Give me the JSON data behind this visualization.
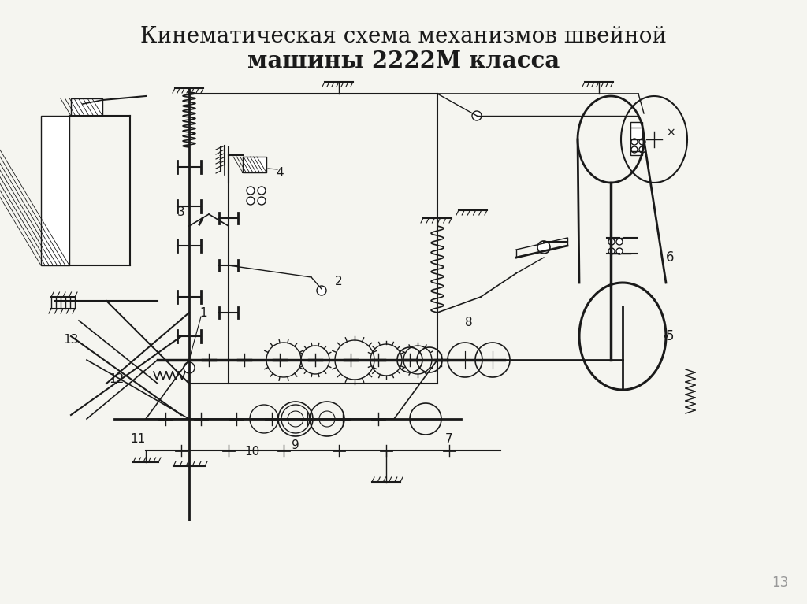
{
  "title_line1": "Кинематическая схема механизмов швейной",
  "title_line2": "машины 2222М класса",
  "title_fontsize": 20,
  "background_color": "#f5f5f0",
  "line_color": "#1a1a1a",
  "page_number": "13"
}
